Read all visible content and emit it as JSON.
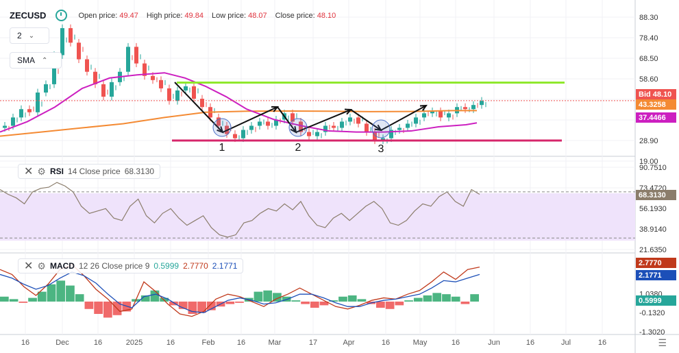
{
  "header": {
    "symbol": "ZECUSD",
    "open_label": "Open price:",
    "open_value": "49.47",
    "high_label": "High price:",
    "high_value": "49.84",
    "low_label": "Low price:",
    "low_value": "48.07",
    "close_label": "Close price:",
    "close_value": "48.10",
    "interval_value": "2",
    "indicator_selector": "SMA"
  },
  "rsi_legend": {
    "name": "RSI",
    "params": "14 Close price",
    "value": "68.3130"
  },
  "macd_legend": {
    "name": "MACD",
    "params": "12 26 Close price 9",
    "hist": "0.5999",
    "macd": "2.7770",
    "signal": "2.1771"
  },
  "price_tags": {
    "bid": "Bid 48.10",
    "sma_orange": "43.3258",
    "sma_magenta": "37.4466",
    "rsi": "68.3130",
    "macd": "2.7770",
    "signal": "2.1771",
    "hist": "0.5999"
  },
  "colors": {
    "up": "#26a69a",
    "down": "#ef5350",
    "sma_long": "#f48a33",
    "sma_short": "#cc1fc0",
    "support": "#d6266a",
    "resistance": "#90e82d",
    "rsi_line": "#8b7d6b",
    "rsi_band": "#efe3fb",
    "macd_line": "#c0391b",
    "signal_line": "#1c4fb8",
    "bid": "#ef5350"
  },
  "chart_data": [
    {
      "type": "candlestick",
      "title": "ZECUSD",
      "y_ticks": [
        "88.30",
        "78.40",
        "68.50",
        "58.60",
        "48.70",
        "38.80",
        "28.90",
        "19.00"
      ],
      "ylim": [
        19.0,
        88.3
      ],
      "x_ticks": [
        "16",
        "Dec",
        "16",
        "2025",
        "16",
        "Feb",
        "16",
        "Mar",
        "17",
        "Apr",
        "16",
        "May",
        "16",
        "Jun",
        "16",
        "Jul",
        "16"
      ],
      "close_path": [
        36.0,
        40.0,
        44.0,
        42.5,
        52.0,
        56.0,
        70.0,
        83.0,
        76.0,
        68.0,
        62.0,
        56.0,
        50.0,
        57.0,
        62.0,
        74.0,
        66.0,
        60.0,
        58.0,
        54.0,
        48.0,
        53.0,
        55.0,
        49.0,
        45.0,
        40.0,
        36.0,
        32.0,
        30.0,
        34.0,
        36.0,
        38.0,
        36.0,
        39.0,
        42.0,
        38.0,
        33.0,
        31.0,
        33.0,
        36.0,
        35.0,
        38.0,
        40.0,
        37.0,
        33.0,
        29.0,
        30.0,
        34.0,
        35.0,
        37.0,
        40.0,
        42.0,
        43.0,
        40.0,
        42.0,
        45.0,
        44.0,
        46.0,
        48.0
      ],
      "sma_long": {
        "name": "",
        "points": [
          [
            0,
            31.0
          ],
          [
            60,
            33.0
          ],
          [
            120,
            35.0
          ],
          [
            180,
            37.0
          ],
          [
            240,
            40.0
          ],
          [
            300,
            42.5
          ],
          [
            360,
            43.0
          ],
          [
            420,
            43.1
          ],
          [
            480,
            43.0
          ],
          [
            540,
            42.8
          ],
          [
            600,
            42.9
          ],
          [
            660,
            43.3
          ],
          [
            696,
            43.3
          ]
        ]
      },
      "sma_short": {
        "name": "",
        "points": [
          [
            0,
            33.0
          ],
          [
            40,
            38.0
          ],
          [
            80,
            45.0
          ],
          [
            120,
            54.0
          ],
          [
            160,
            59.0
          ],
          [
            200,
            60.5
          ],
          [
            240,
            61.5
          ],
          [
            270,
            59.0
          ],
          [
            300,
            55.0
          ],
          [
            330,
            50.0
          ],
          [
            360,
            44.0
          ],
          [
            400,
            39.0
          ],
          [
            440,
            36.0
          ],
          [
            480,
            33.5
          ],
          [
            520,
            33.0
          ],
          [
            560,
            33.0
          ],
          [
            600,
            33.5
          ],
          [
            640,
            35.5
          ],
          [
            680,
            36.5
          ],
          [
            696,
            37.4
          ]
        ]
      },
      "lines": [
        {
          "name": "resistance",
          "y": 56.8,
          "x_range": [
            258,
            824
          ]
        },
        {
          "name": "support",
          "y": 28.9,
          "x_range": [
            251,
            820
          ]
        }
      ],
      "annotations": [
        "1",
        "2",
        "3"
      ]
    },
    {
      "type": "line",
      "title": "RSI",
      "y_ticks": [
        "90.7510",
        "73.4720",
        "56.1930",
        "38.9140",
        "21.6350"
      ],
      "ylim": [
        21.635,
        90.751
      ],
      "band": [
        31.3,
        70.1
      ],
      "series": [
        {
          "name": "",
          "values": [
            72,
            68,
            65,
            60,
            70,
            73,
            74,
            78,
            75,
            70,
            58,
            52,
            54,
            56,
            48,
            46,
            58,
            64,
            50,
            44,
            52,
            56,
            48,
            42,
            46,
            50,
            40,
            34,
            32,
            34,
            44,
            46,
            52,
            56,
            54,
            60,
            55,
            62,
            50,
            42,
            40,
            48,
            52,
            46,
            52,
            58,
            62,
            56,
            44,
            42,
            46,
            54,
            60,
            58,
            66,
            70,
            62,
            58,
            72,
            68
          ]
        }
      ]
    },
    {
      "type": "bar",
      "title": "MACD",
      "y_ticks": [
        "2.7770",
        "1.0380",
        "-0.1320",
        "-1.3020"
      ],
      "ylim": [
        -1.302,
        3.4
      ],
      "histogram": [
        0.4,
        0.2,
        -0.1,
        0.3,
        0.8,
        1.4,
        1.7,
        1.3,
        0.6,
        -0.6,
        -1.0,
        -1.3,
        -1.1,
        -0.8,
        0.2,
        0.5,
        0.9,
        0.3,
        -0.3,
        -0.6,
        -1.0,
        -0.9,
        -0.7,
        -0.4,
        -0.2,
        -0.1,
        0.3,
        0.8,
        0.9,
        0.7,
        0.4,
        0.1,
        -0.2,
        -0.5,
        -0.3,
        0.1,
        0.4,
        0.5,
        0.2,
        -0.2,
        -0.5,
        -0.6,
        -0.3,
        0.1,
        0.3,
        0.5,
        0.7,
        0.6,
        0.4,
        -0.2,
        0.6
      ],
      "series": [
        {
          "name": "",
          "values": [
            2.6,
            2.2,
            1.2,
            0.5,
            1.4,
            2.6,
            3.0,
            2.1,
            1.0,
            0.2,
            -0.8,
            -0.6,
            1.6,
            0.8,
            -0.2,
            -1.0,
            -1.2,
            -0.8,
            0.2,
            0.6,
            0.4,
            0.0,
            -0.4,
            0.2,
            0.6,
            1.1,
            0.6,
            0.1,
            -0.4,
            -0.6,
            -0.3,
            0.1,
            0.3,
            0.2,
            0.6,
            0.9,
            1.6,
            2.4,
            1.8,
            2.6,
            2.8
          ]
        },
        {
          "name": "",
          "values": [
            2.2,
            1.9,
            1.4,
            1.0,
            1.3,
            1.9,
            2.4,
            2.1,
            1.5,
            0.6,
            -0.2,
            -0.5,
            0.4,
            0.6,
            0.2,
            -0.4,
            -0.8,
            -0.9,
            -0.4,
            0.1,
            0.3,
            0.1,
            -0.2,
            -0.1,
            0.2,
            0.6,
            0.6,
            0.3,
            -0.1,
            -0.4,
            -0.4,
            -0.1,
            0.1,
            0.2,
            0.4,
            0.6,
            1.1,
            1.7,
            1.6,
            1.9,
            2.2
          ]
        }
      ]
    }
  ]
}
